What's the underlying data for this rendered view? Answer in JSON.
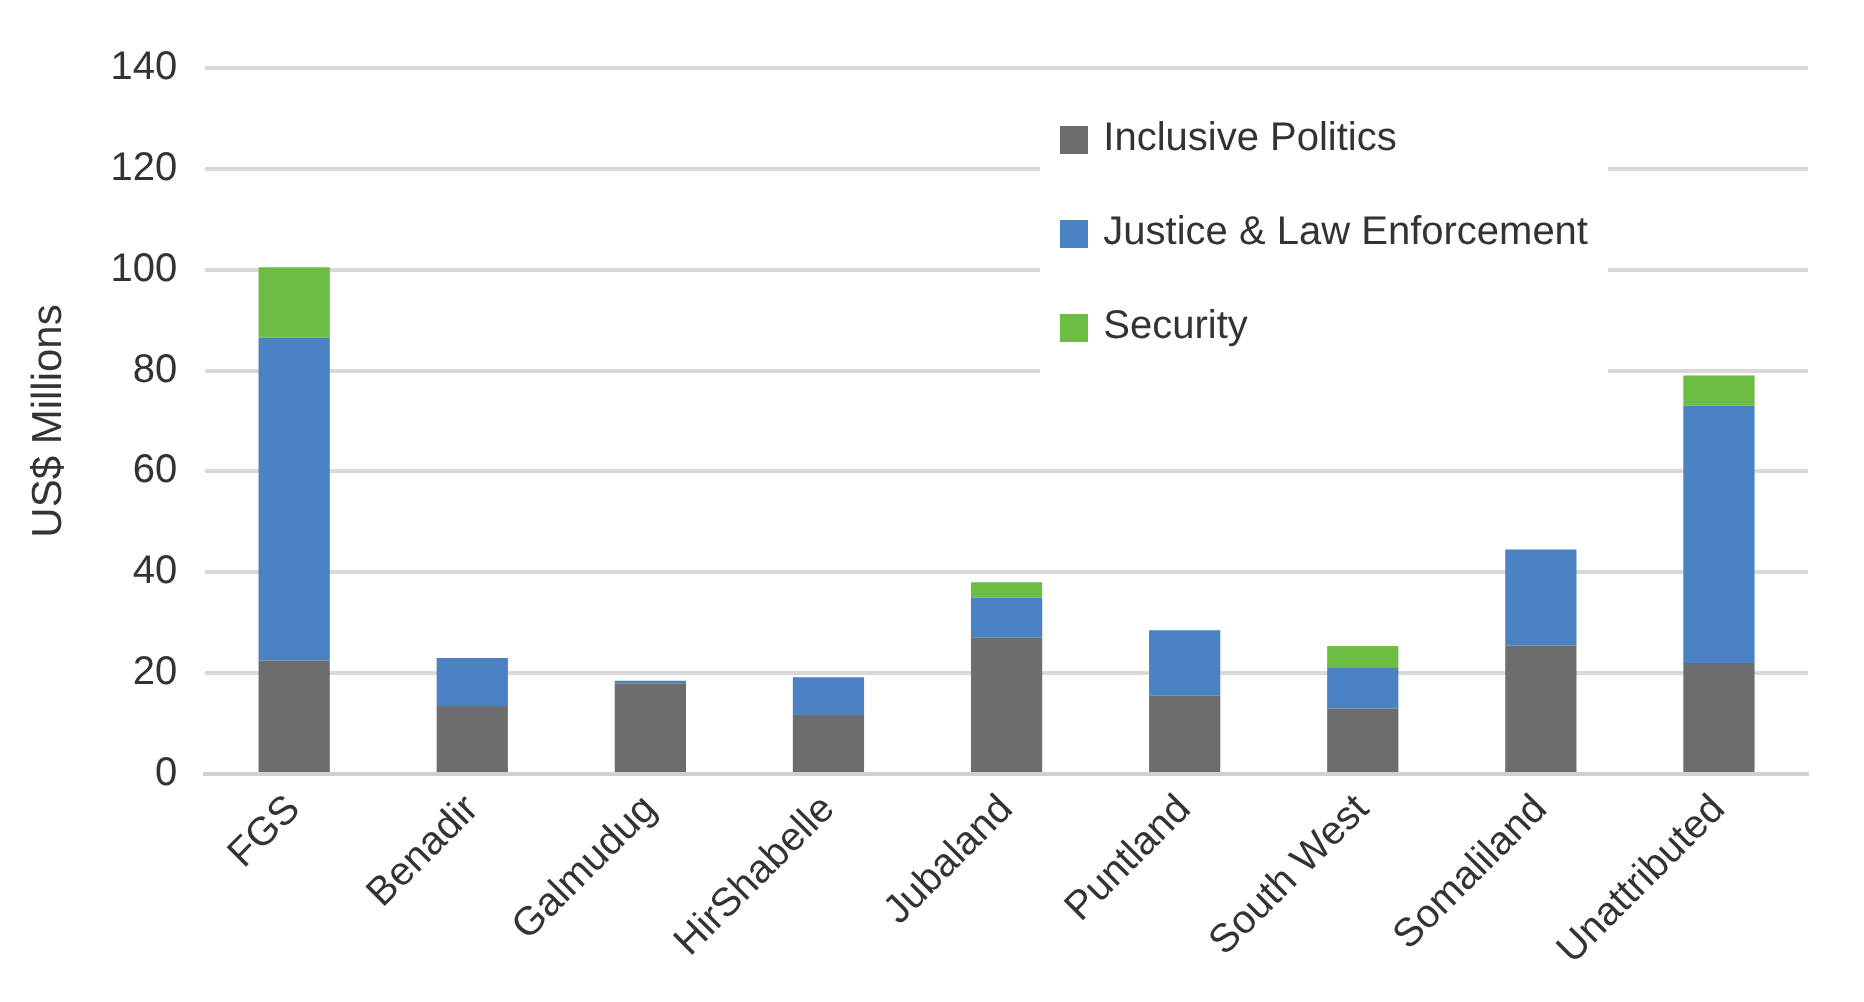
{
  "chart_data": {
    "type": "bar",
    "stacked": true,
    "ylabel": "US$ Millions",
    "categories": [
      "FGS",
      "Benadir",
      "Galmudug",
      "HirShabelle",
      "Jubaland",
      "Puntland",
      "South West",
      "Somaliland",
      "Unattributed"
    ],
    "series": [
      {
        "name": "Inclusive Politics",
        "color": "#6d6d6f",
        "values": [
          22.5,
          13.5,
          18,
          11.7,
          27,
          15.5,
          13,
          25.5,
          22
        ]
      },
      {
        "name": "Justice & Law Enforcement",
        "color": "#4a82c3",
        "values": [
          64,
          9.5,
          0.5,
          7.5,
          8,
          13,
          8,
          19,
          51
        ]
      },
      {
        "name": "Security",
        "color": "#6dbd45",
        "values": [
          14,
          null,
          null,
          null,
          3,
          null,
          4.4,
          null,
          6
        ]
      }
    ],
    "ylim": [
      0,
      140
    ],
    "yticks": [
      0,
      20,
      40,
      60,
      80,
      100,
      120,
      140
    ],
    "grid": "y",
    "legend": "top right"
  }
}
